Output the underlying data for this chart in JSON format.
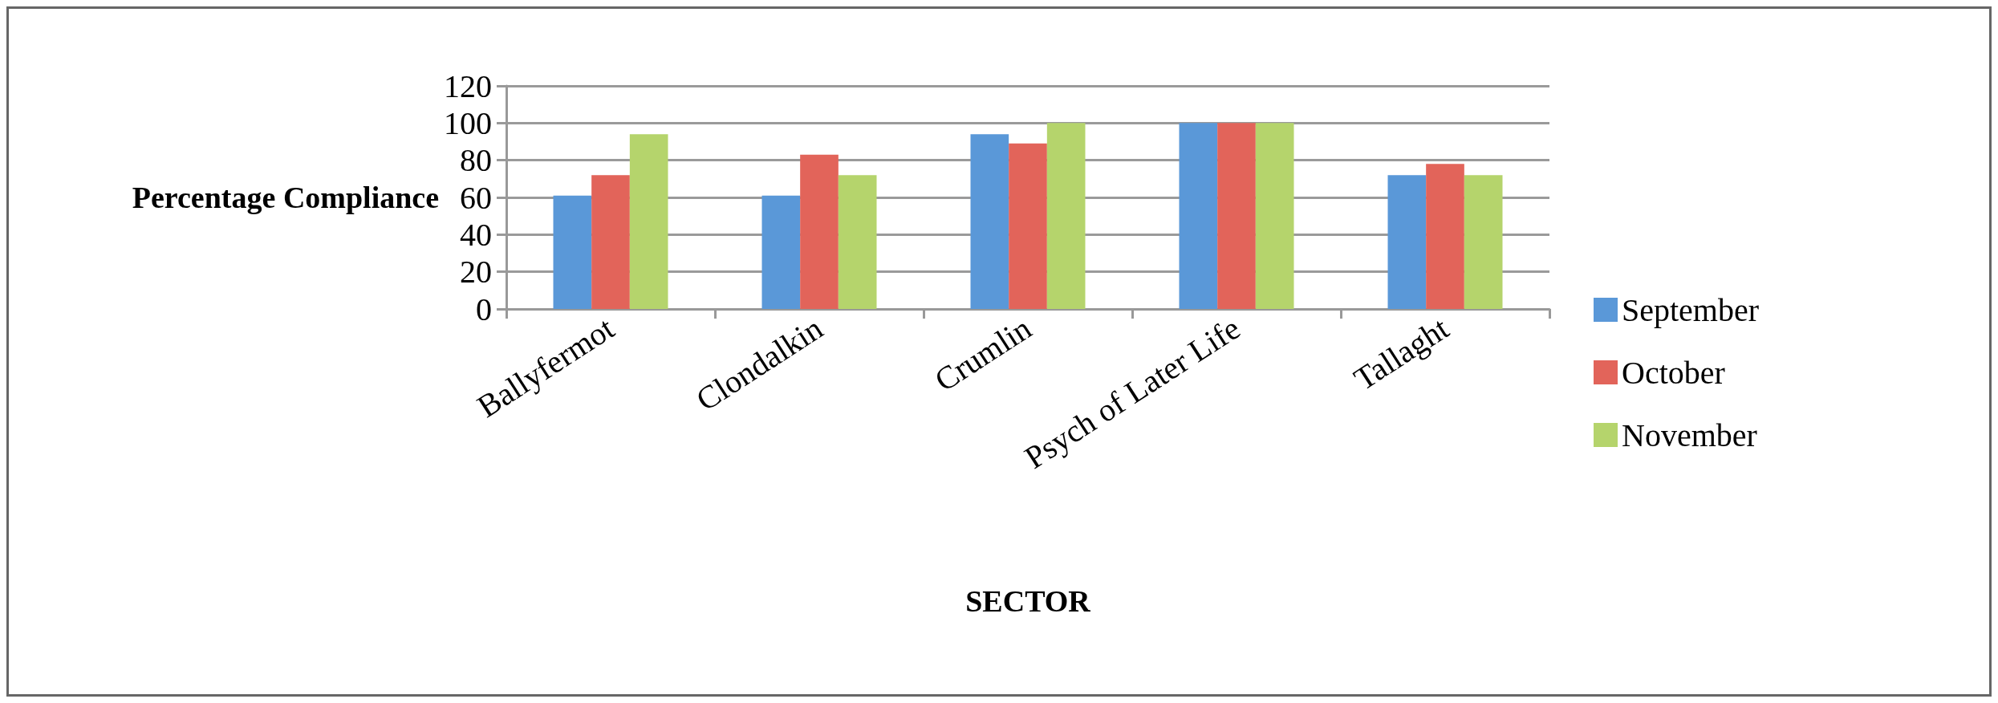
{
  "chart_data": {
    "type": "bar",
    "xlabel": "SECTOR",
    "ylabel": "Percentage Compliance",
    "categories": [
      "Ballyfermot",
      "Clondalkin",
      "Crumlin",
      "Psych of Later Life",
      "Tallaght"
    ],
    "series": [
      {
        "name": "September",
        "color": "#5a98d8",
        "values": [
          61,
          61,
          94,
          100,
          72
        ]
      },
      {
        "name": "October",
        "color": "#e2645a",
        "values": [
          72,
          83,
          89,
          100,
          78
        ]
      },
      {
        "name": "November",
        "color": "#b5d46c",
        "values": [
          94,
          72,
          100,
          100,
          72
        ]
      }
    ],
    "ylim": [
      0,
      120
    ],
    "yticks": [
      0,
      20,
      40,
      60,
      80,
      100,
      120
    ],
    "grid": "y",
    "legend": "right"
  }
}
